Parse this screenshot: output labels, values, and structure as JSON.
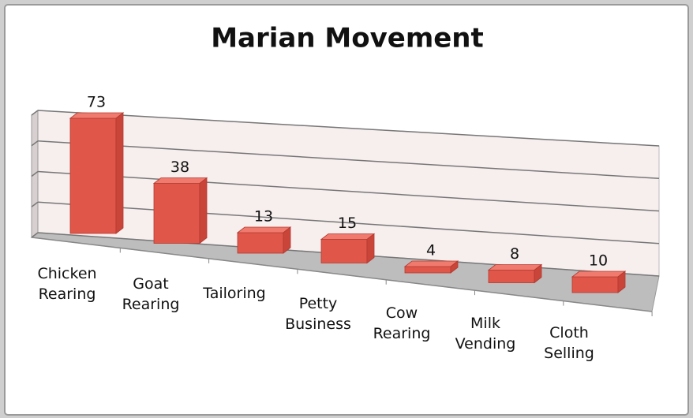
{
  "chart_data": {
    "type": "bar3d",
    "title": "Marian Movement",
    "categories": [
      "Chicken Rearing",
      "Goat Rearing",
      "Tailoring",
      "Petty Business",
      "Cow Rearing",
      "Milk Vending",
      "Cloth Selling"
    ],
    "values": [
      73,
      38,
      13,
      15,
      4,
      8,
      10
    ],
    "color": "#e0574a",
    "ylim": [
      0,
      80
    ],
    "yticks": [
      0,
      20,
      40,
      60,
      80
    ],
    "grid": true
  }
}
